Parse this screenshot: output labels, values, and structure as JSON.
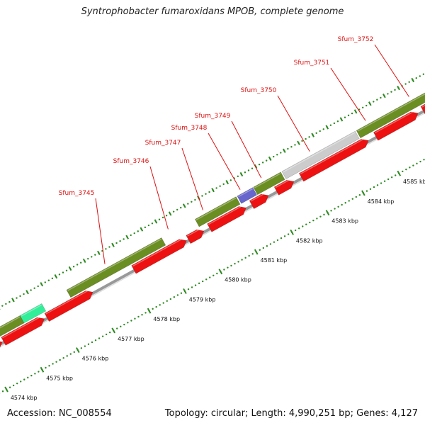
{
  "title": "Syntrophobacter fumaroxidans MPOB, complete genome",
  "footer": {
    "accession": "Accession: NC_008554",
    "summary": "Topology: circular; Length: 4,990,251 bp; Genes: 4,127"
  },
  "colors": {
    "cds": "#ee1111",
    "cds_edge": "#aa0000",
    "cog_green": "#6b8e23",
    "cog_teal": "#33ee99",
    "cog_blue": "#6666cc",
    "cog_gray": "#cccccc",
    "cog_salmon": "#e08060",
    "backbone": "#999999",
    "tick": "#2e8b22",
    "label": "#dd1111"
  },
  "ticks": [
    {
      "kbp": 4574,
      "label": "4574 kbp"
    },
    {
      "kbp": 4575,
      "label": "4575 kbp"
    },
    {
      "kbp": 4576,
      "label": "4576 kbp"
    },
    {
      "kbp": 4577,
      "label": "4577 kbp"
    },
    {
      "kbp": 4578,
      "label": "4578 kbp"
    },
    {
      "kbp": 4579,
      "label": "4579 kbp"
    },
    {
      "kbp": 4580,
      "label": "4580 kbp"
    },
    {
      "kbp": 4581,
      "label": "4581 kbp"
    },
    {
      "kbp": 4582,
      "label": "4582 kbp"
    },
    {
      "kbp": 4583,
      "label": "4583 kbp"
    },
    {
      "kbp": 4584,
      "label": "4584 kbp"
    },
    {
      "kbp": 4585,
      "label": "4585 kbp"
    }
  ],
  "genes": [
    {
      "name": "Sfum_3745",
      "label": "Sfum_3745"
    },
    {
      "name": "Sfum_3746",
      "label": "Sfum_3746"
    },
    {
      "name": "Sfum_3747",
      "label": "Sfum_3747"
    },
    {
      "name": "Sfum_3748",
      "label": "Sfum_3748"
    },
    {
      "name": "Sfum_3749",
      "label": "Sfum_3749"
    },
    {
      "name": "Sfum_3750",
      "label": "Sfum_3750"
    },
    {
      "name": "Sfum_3751",
      "label": "Sfum_3751"
    },
    {
      "name": "Sfum_3752",
      "label": "Sfum_3752"
    }
  ]
}
